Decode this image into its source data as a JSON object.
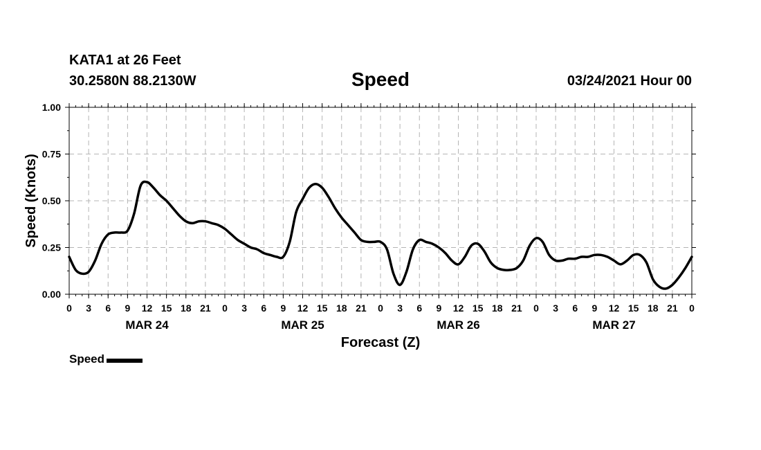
{
  "header": {
    "station": "KATA1 at 26 Feet",
    "coords": "30.2580N 88.2130W",
    "title": "Speed",
    "datetime": "03/24/2021 Hour 00"
  },
  "colors": {
    "line": "#000000",
    "grid": "#b4b4b4",
    "axis": "#000000"
  },
  "legend": {
    "label": "Speed"
  },
  "chart_data": {
    "type": "line",
    "title": "Speed",
    "xlabel": "Forecast (Z)",
    "ylabel": "Speed (Knots)",
    "xlim": [
      0,
      96
    ],
    "ylim": [
      0,
      1
    ],
    "grid": true,
    "legend_position": "bottom-left",
    "y_ticks": [
      0,
      0.25,
      0.5,
      0.75,
      1
    ],
    "y_tick_labels": [
      "0.00",
      "0.25",
      "0.50",
      "0.75",
      "1.00"
    ],
    "x_ticks": [
      0,
      3,
      6,
      9,
      12,
      15,
      18,
      21,
      24,
      27,
      30,
      33,
      36,
      39,
      42,
      45,
      48,
      51,
      54,
      57,
      60,
      63,
      66,
      69,
      72,
      75,
      78,
      81,
      84,
      87,
      90,
      93,
      96
    ],
    "x_tick_labels": [
      "0",
      "3",
      "6",
      "9",
      "12",
      "15",
      "18",
      "21",
      "0",
      "3",
      "6",
      "9",
      "12",
      "15",
      "18",
      "21",
      "0",
      "3",
      "6",
      "9",
      "12",
      "15",
      "18",
      "21",
      "0",
      "3",
      "6",
      "9",
      "12",
      "15",
      "18",
      "21",
      "0"
    ],
    "date_labels": [
      {
        "hour": 12,
        "label": "MAR 24"
      },
      {
        "hour": 36,
        "label": "MAR 25"
      },
      {
        "hour": 60,
        "label": "MAR 26"
      },
      {
        "hour": 84,
        "label": "MAR 27"
      }
    ],
    "series": [
      {
        "name": "Speed",
        "x": [
          0,
          1,
          2,
          3,
          4,
          5,
          6,
          7,
          8,
          9,
          10,
          11,
          12,
          13,
          14,
          15,
          16,
          17,
          18,
          19,
          20,
          21,
          22,
          23,
          24,
          25,
          26,
          27,
          28,
          29,
          30,
          31,
          32,
          33,
          34,
          35,
          36,
          37,
          38,
          39,
          40,
          41,
          42,
          43,
          44,
          45,
          46,
          47,
          48,
          49,
          50,
          51,
          52,
          53,
          54,
          55,
          56,
          57,
          58,
          59,
          60,
          61,
          62,
          63,
          64,
          65,
          66,
          67,
          68,
          69,
          70,
          71,
          72,
          73,
          74,
          75,
          76,
          77,
          78,
          79,
          80,
          81,
          82,
          83,
          84,
          85,
          86,
          87,
          88,
          89,
          90,
          91,
          92,
          93,
          94,
          95,
          96
        ],
        "values": [
          0.2,
          0.13,
          0.11,
          0.12,
          0.18,
          0.27,
          0.32,
          0.33,
          0.33,
          0.34,
          0.43,
          0.58,
          0.6,
          0.57,
          0.53,
          0.5,
          0.46,
          0.42,
          0.39,
          0.38,
          0.39,
          0.39,
          0.38,
          0.37,
          0.35,
          0.32,
          0.29,
          0.27,
          0.25,
          0.24,
          0.22,
          0.21,
          0.2,
          0.2,
          0.28,
          0.44,
          0.51,
          0.57,
          0.59,
          0.57,
          0.52,
          0.46,
          0.41,
          0.37,
          0.33,
          0.29,
          0.28,
          0.28,
          0.28,
          0.24,
          0.11,
          0.05,
          0.12,
          0.24,
          0.29,
          0.28,
          0.27,
          0.25,
          0.22,
          0.18,
          0.16,
          0.2,
          0.26,
          0.27,
          0.23,
          0.17,
          0.14,
          0.13,
          0.13,
          0.14,
          0.18,
          0.26,
          0.3,
          0.28,
          0.21,
          0.18,
          0.18,
          0.19,
          0.19,
          0.2,
          0.2,
          0.21,
          0.21,
          0.2,
          0.18,
          0.16,
          0.18,
          0.21,
          0.21,
          0.17,
          0.08,
          0.04,
          0.03,
          0.05,
          0.09,
          0.14,
          0.2
        ]
      }
    ]
  }
}
